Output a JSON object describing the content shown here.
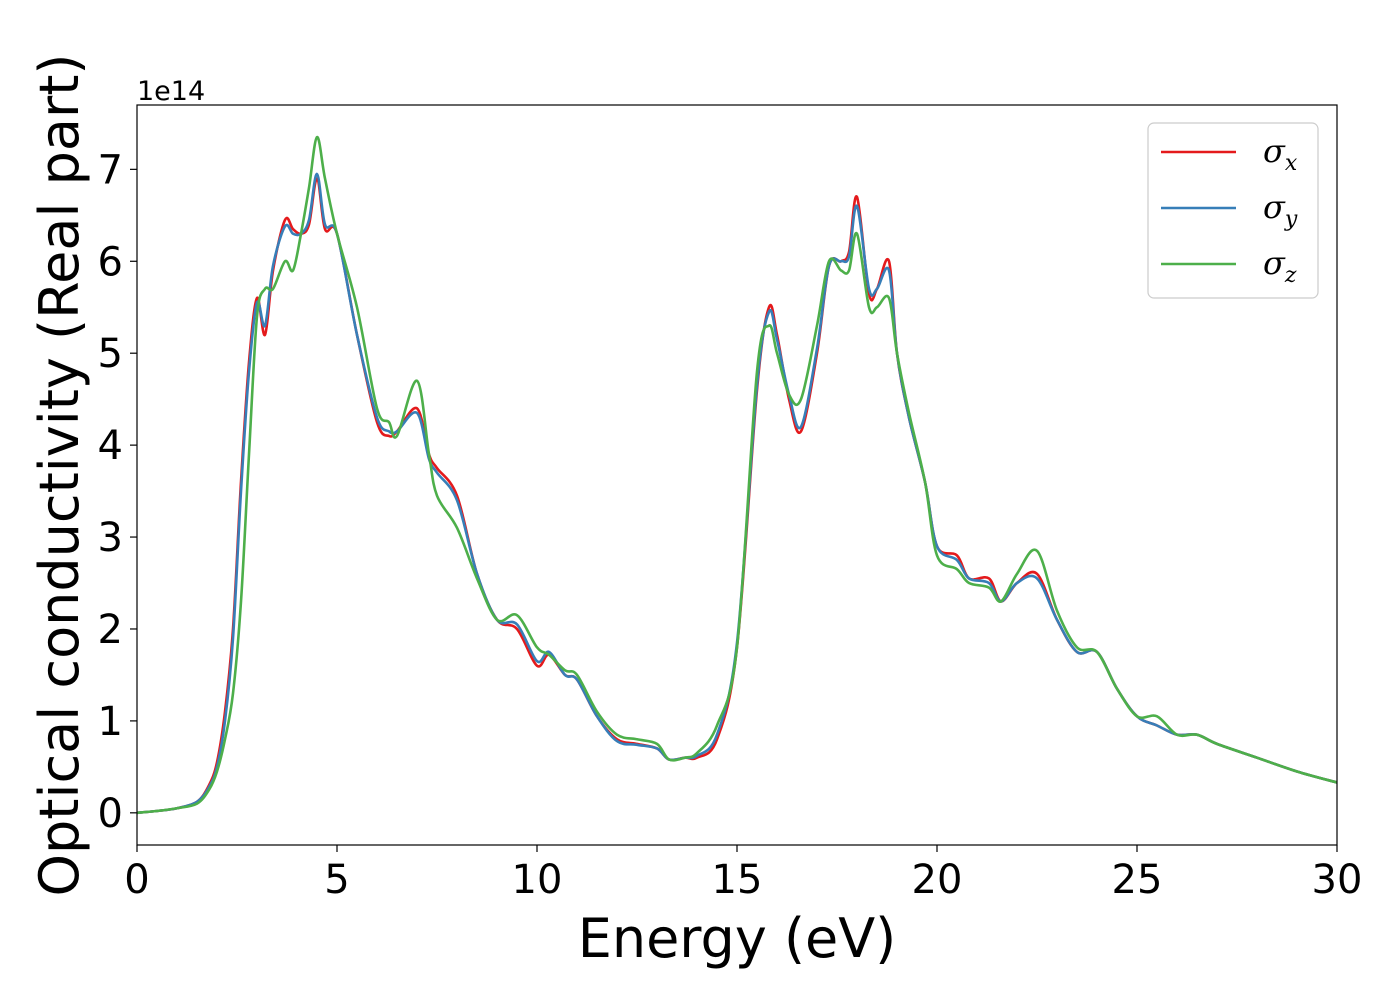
{
  "chart_data": {
    "type": "line",
    "title": "",
    "xlabel": "Energy (eV)",
    "ylabel": "Optical conductivity (Real part)",
    "y_offset_label": "1e14",
    "xlim": [
      0,
      30
    ],
    "ylim": [
      -0.35,
      7.7
    ],
    "xticks": [
      0,
      5,
      10,
      15,
      20,
      25,
      30
    ],
    "yticks": [
      0,
      1,
      2,
      3,
      4,
      5,
      6,
      7
    ],
    "grid": false,
    "legend_position": "upper right",
    "series": [
      {
        "name": "σx",
        "legend_symbol": "σ",
        "legend_sub": "x",
        "color": "#e41a1c",
        "x": [
          0,
          0.5,
          1,
          1.5,
          1.8,
          2,
          2.2,
          2.4,
          2.6,
          2.8,
          3.0,
          3.2,
          3.4,
          3.7,
          3.9,
          4.1,
          4.3,
          4.5,
          4.7,
          5.0,
          5.5,
          6.0,
          6.3,
          6.5,
          7.0,
          7.3,
          7.5,
          8.0,
          8.5,
          9.0,
          9.5,
          10.0,
          10.3,
          10.7,
          11.0,
          11.5,
          12.0,
          12.5,
          13.0,
          13.3,
          13.7,
          14.0,
          14.5,
          15.0,
          15.5,
          15.8,
          16.0,
          16.3,
          16.6,
          17.0,
          17.3,
          17.6,
          17.8,
          18.0,
          18.3,
          18.5,
          18.8,
          19.0,
          19.3,
          19.7,
          20.0,
          20.5,
          20.8,
          21.3,
          21.6,
          22.0,
          22.5,
          23.0,
          23.5,
          24.0,
          24.5,
          25.0,
          25.5,
          26.0,
          26.5,
          27.0,
          28.0,
          29.0,
          30.0
        ],
        "y": [
          0,
          0.02,
          0.05,
          0.12,
          0.3,
          0.55,
          1.1,
          2.0,
          3.6,
          4.9,
          5.6,
          5.2,
          5.9,
          6.45,
          6.35,
          6.3,
          6.4,
          6.9,
          6.35,
          6.3,
          5.2,
          4.25,
          4.1,
          4.15,
          4.4,
          3.9,
          3.75,
          3.45,
          2.6,
          2.1,
          2.0,
          1.6,
          1.72,
          1.5,
          1.45,
          1.05,
          0.8,
          0.75,
          0.7,
          0.58,
          0.6,
          0.6,
          0.8,
          1.8,
          4.6,
          5.5,
          5.2,
          4.5,
          4.15,
          5.0,
          5.95,
          6.0,
          6.1,
          6.7,
          5.65,
          5.7,
          6.0,
          5.0,
          4.3,
          3.6,
          2.9,
          2.8,
          2.55,
          2.55,
          2.3,
          2.5,
          2.6,
          2.1,
          1.75,
          1.75,
          1.35,
          1.05,
          0.95,
          0.85,
          0.85,
          0.75,
          0.6,
          0.45,
          0.33
        ]
      },
      {
        "name": "σy",
        "legend_symbol": "σ",
        "legend_sub": "y",
        "color": "#377eb8",
        "x": [
          0,
          0.5,
          1,
          1.5,
          1.8,
          2,
          2.2,
          2.4,
          2.6,
          2.8,
          3.0,
          3.2,
          3.4,
          3.7,
          3.9,
          4.1,
          4.3,
          4.5,
          4.7,
          5.0,
          5.5,
          6.0,
          6.3,
          6.5,
          7.0,
          7.3,
          7.5,
          8.0,
          8.5,
          9.0,
          9.5,
          10.0,
          10.3,
          10.7,
          11.0,
          11.5,
          12.0,
          12.5,
          13.0,
          13.3,
          13.7,
          14.0,
          14.5,
          15.0,
          15.5,
          15.8,
          16.0,
          16.3,
          16.6,
          17.0,
          17.3,
          17.6,
          17.8,
          18.0,
          18.3,
          18.5,
          18.8,
          19.0,
          19.3,
          19.7,
          20.0,
          20.5,
          20.8,
          21.3,
          21.6,
          22.0,
          22.5,
          23.0,
          23.5,
          24.0,
          24.5,
          25.0,
          25.5,
          26.0,
          26.5,
          27.0,
          28.0,
          29.0,
          30.0
        ],
        "y": [
          0,
          0.02,
          0.05,
          0.12,
          0.28,
          0.5,
          1.0,
          1.9,
          3.5,
          4.8,
          5.55,
          5.3,
          5.95,
          6.38,
          6.3,
          6.3,
          6.45,
          6.95,
          6.4,
          6.3,
          5.2,
          4.3,
          4.15,
          4.15,
          4.35,
          3.85,
          3.7,
          3.4,
          2.6,
          2.1,
          2.05,
          1.65,
          1.75,
          1.5,
          1.45,
          1.05,
          0.78,
          0.74,
          0.7,
          0.58,
          0.6,
          0.62,
          0.85,
          1.85,
          4.65,
          5.45,
          5.15,
          4.55,
          4.2,
          5.05,
          5.95,
          6.0,
          6.05,
          6.6,
          5.7,
          5.7,
          5.9,
          5.0,
          4.3,
          3.6,
          2.9,
          2.75,
          2.55,
          2.5,
          2.3,
          2.5,
          2.55,
          2.1,
          1.75,
          1.75,
          1.35,
          1.05,
          0.95,
          0.85,
          0.85,
          0.75,
          0.6,
          0.45,
          0.33
        ]
      },
      {
        "name": "σz",
        "legend_symbol": "σ",
        "legend_sub": "z",
        "color": "#4daf4a",
        "x": [
          0,
          0.5,
          1,
          1.5,
          1.8,
          2,
          2.2,
          2.4,
          2.6,
          2.8,
          3.0,
          3.2,
          3.4,
          3.7,
          3.9,
          4.1,
          4.3,
          4.5,
          4.7,
          5.0,
          5.5,
          6.0,
          6.3,
          6.5,
          7.0,
          7.3,
          7.5,
          8.0,
          8.5,
          9.0,
          9.5,
          10.0,
          10.3,
          10.7,
          11.0,
          11.5,
          12.0,
          12.5,
          13.0,
          13.3,
          13.7,
          14.0,
          14.5,
          15.0,
          15.5,
          15.8,
          16.0,
          16.3,
          16.6,
          17.0,
          17.3,
          17.6,
          17.8,
          18.0,
          18.3,
          18.5,
          18.8,
          19.0,
          19.3,
          19.7,
          20.0,
          20.5,
          20.8,
          21.3,
          21.6,
          22.0,
          22.5,
          23.0,
          23.5,
          24.0,
          24.5,
          25.0,
          25.5,
          26.0,
          26.5,
          27.0,
          28.0,
          29.0,
          30.0
        ],
        "y": [
          0,
          0.02,
          0.05,
          0.1,
          0.25,
          0.45,
          0.8,
          1.3,
          2.3,
          3.9,
          5.4,
          5.7,
          5.7,
          6.0,
          5.9,
          6.3,
          6.8,
          7.35,
          6.9,
          6.3,
          5.5,
          4.4,
          4.25,
          4.1,
          4.7,
          3.9,
          3.45,
          3.1,
          2.55,
          2.1,
          2.15,
          1.8,
          1.72,
          1.55,
          1.5,
          1.1,
          0.85,
          0.8,
          0.75,
          0.58,
          0.6,
          0.65,
          0.95,
          1.8,
          4.8,
          5.3,
          5.0,
          4.55,
          4.5,
          5.3,
          6.0,
          5.9,
          5.9,
          6.3,
          5.5,
          5.5,
          5.6,
          5.0,
          4.35,
          3.6,
          2.8,
          2.65,
          2.5,
          2.45,
          2.3,
          2.6,
          2.85,
          2.2,
          1.8,
          1.75,
          1.35,
          1.05,
          1.05,
          0.85,
          0.85,
          0.75,
          0.6,
          0.45,
          0.33
        ]
      }
    ]
  }
}
